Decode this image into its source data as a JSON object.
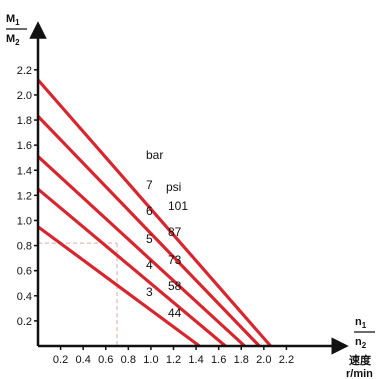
{
  "chart_data": {
    "type": "line",
    "y_axis_label": {
      "numerator": "M",
      "numerator_sub": "1",
      "denominator": "M",
      "denominator_sub": "2"
    },
    "x_axis_label": {
      "numerator": "n",
      "numerator_sub": "1",
      "denominator": "n",
      "denominator_sub": "2",
      "unit_cn": "速度",
      "unit": "r/min"
    },
    "xlim": [
      0,
      2.4
    ],
    "ylim": [
      0,
      2.35
    ],
    "x_ticks": [
      "0.2",
      "0.4",
      "0.6",
      "0.8",
      "1.0",
      "1.2",
      "1.4",
      "1.6",
      "1.8",
      "2.0",
      "2.2"
    ],
    "y_ticks": [
      "0.2",
      "0.4",
      "0.6",
      "0.8",
      "1.0",
      "1.2",
      "1.4",
      "1.6",
      "1.8",
      "2.0",
      "2.2"
    ],
    "pressure_header_bar": "bar",
    "pressure_header_psi": "psi",
    "series": [
      {
        "bar": "3",
        "psi": "44",
        "x": [
          0,
          1.43
        ],
        "y": [
          0.95,
          0
        ]
      },
      {
        "bar": "4",
        "psi": "58",
        "x": [
          0,
          1.66
        ],
        "y": [
          1.25,
          0
        ]
      },
      {
        "bar": "5",
        "psi": "73",
        "x": [
          0,
          1.83
        ],
        "y": [
          1.51,
          0
        ]
      },
      {
        "bar": "6",
        "psi": "87",
        "x": [
          0,
          1.96
        ],
        "y": [
          1.83,
          0
        ]
      },
      {
        "bar": "7",
        "psi": "101",
        "x": [
          0,
          2.06
        ],
        "y": [
          2.12,
          0
        ]
      }
    ],
    "reference_point": {
      "x": 0.7,
      "y": 0.82
    },
    "colors": {
      "series": "#d8262e",
      "axis": "#111111",
      "guide": "#d9a8a8"
    }
  }
}
